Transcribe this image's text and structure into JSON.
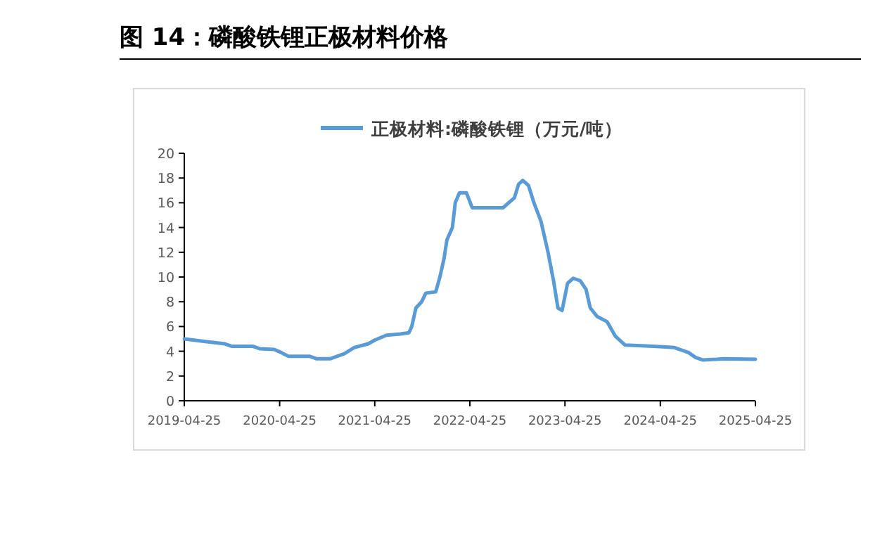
{
  "chart_data": {
    "type": "line",
    "title": "图 14：磷酸铁锂正极材料价格",
    "legend": "top",
    "grid": false,
    "marker": "none",
    "line_style": "solid",
    "xlim": [
      "2019-04-25",
      "2025-04-25"
    ],
    "xticks": [
      "2019-04-25",
      "2020-04-25",
      "2021-04-25",
      "2022-04-25",
      "2023-04-25",
      "2024-04-25",
      "2025-04-25"
    ],
    "ylim": [
      0,
      20
    ],
    "yticks": [
      0,
      2,
      4,
      6,
      8,
      10,
      12,
      14,
      16,
      18,
      20
    ],
    "series": [
      {
        "name": "正极材料:磷酸铁锂（万元/吨）",
        "color": "#5b9bd5",
        "x": [
          "2019-04-25",
          "2019-07-09",
          "2019-09-28",
          "2019-10-25",
          "2020-01-14",
          "2020-02-10",
          "2020-04-04",
          "2020-05-01",
          "2020-05-28",
          "2020-08-17",
          "2020-09-13",
          "2020-11-06",
          "2020-12-29",
          "2021-02-05",
          "2021-03-31",
          "2021-04-25",
          "2021-06-09",
          "2021-08-02",
          "2021-09-03",
          "2021-09-14",
          "2021-09-30",
          "2021-10-22",
          "2021-11-07",
          "2021-12-15",
          "2021-12-31",
          "2022-01-16",
          "2022-01-27",
          "2022-02-17",
          "2022-02-28",
          "2022-03-16",
          "2022-04-12",
          "2022-05-04",
          "2022-08-31",
          "2022-09-21",
          "2022-10-13",
          "2022-10-29",
          "2022-11-14",
          "2022-12-06",
          "2022-12-27",
          "2023-01-23",
          "2023-02-19",
          "2023-03-13",
          "2023-03-29",
          "2023-04-14",
          "2023-05-05",
          "2023-05-27",
          "2023-06-23",
          "2023-07-15",
          "2023-07-31",
          "2023-08-27",
          "2023-10-03",
          "2023-11-05",
          "2023-12-12",
          "2024-03-29",
          "2024-06-18",
          "2024-08-11",
          "2024-09-07",
          "2024-10-04",
          "2024-11-27",
          "2024-12-24",
          "2025-04-25"
        ],
        "values": [
          5.0,
          4.8,
          4.6,
          4.4,
          4.4,
          4.2,
          4.15,
          3.9,
          3.6,
          3.6,
          3.4,
          3.4,
          3.8,
          4.3,
          4.6,
          4.9,
          5.3,
          5.4,
          5.5,
          6.0,
          7.5,
          8.0,
          8.7,
          8.8,
          10,
          11.5,
          13,
          14,
          16,
          16.8,
          16.8,
          15.6,
          15.6,
          16.0,
          16.4,
          17.5,
          17.8,
          17.4,
          16,
          14.5,
          12,
          9.6,
          7.5,
          7.3,
          9.5,
          9.9,
          9.7,
          9.0,
          7.5,
          6.8,
          6.4,
          5.2,
          4.5,
          4.4,
          4.3,
          3.9,
          3.5,
          3.3,
          3.35,
          3.4,
          3.35
        ]
      }
    ]
  }
}
